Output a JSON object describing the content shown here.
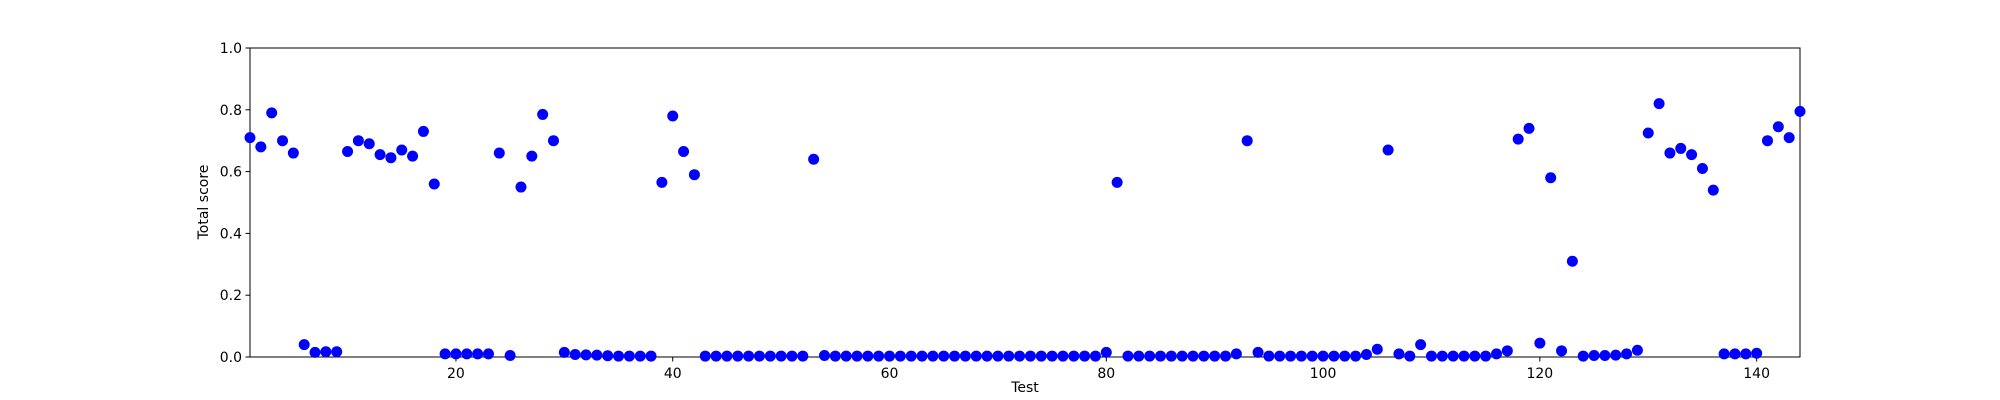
{
  "chart_data": {
    "type": "scatter",
    "xlabel": "Test",
    "ylabel": "Total score",
    "x": [
      1,
      2,
      3,
      4,
      5,
      6,
      7,
      8,
      9,
      10,
      11,
      12,
      13,
      14,
      15,
      16,
      17,
      18,
      19,
      20,
      21,
      22,
      23,
      24,
      25,
      26,
      27,
      28,
      29,
      30,
      31,
      32,
      33,
      34,
      35,
      36,
      37,
      38,
      39,
      40,
      41,
      42,
      43,
      44,
      45,
      46,
      47,
      48,
      49,
      50,
      51,
      52,
      53,
      54,
      55,
      56,
      57,
      58,
      59,
      60,
      61,
      62,
      63,
      64,
      65,
      66,
      67,
      68,
      69,
      70,
      71,
      72,
      73,
      74,
      75,
      76,
      77,
      78,
      79,
      80,
      81,
      82,
      83,
      84,
      85,
      86,
      87,
      88,
      89,
      90,
      91,
      92,
      93,
      94,
      95,
      96,
      97,
      98,
      99,
      100,
      101,
      102,
      103,
      104,
      105,
      106,
      107,
      108,
      109,
      110,
      111,
      112,
      113,
      114,
      115,
      116,
      117,
      118,
      119,
      120,
      121,
      122,
      123,
      124,
      125,
      126,
      127,
      128,
      129,
      130,
      131,
      132,
      133,
      134,
      135,
      136,
      137,
      138,
      139,
      140,
      141,
      142,
      143,
      144
    ],
    "values": [
      0.71,
      0.68,
      0.79,
      0.7,
      0.66,
      0.04,
      0.015,
      0.017,
      0.017,
      0.665,
      0.7,
      0.69,
      0.655,
      0.645,
      0.67,
      0.65,
      0.73,
      0.56,
      0.01,
      0.01,
      0.01,
      0.01,
      0.01,
      0.66,
      0.005,
      0.55,
      0.65,
      0.785,
      0.7,
      0.015,
      0.008,
      0.007,
      0.006,
      0.004,
      0.003,
      0.003,
      0.003,
      0.003,
      0.565,
      0.78,
      0.665,
      0.59,
      0.003,
      0.003,
      0.003,
      0.003,
      0.003,
      0.003,
      0.003,
      0.003,
      0.003,
      0.003,
      0.64,
      0.005,
      0.003,
      0.003,
      0.003,
      0.003,
      0.003,
      0.003,
      0.003,
      0.003,
      0.003,
      0.003,
      0.003,
      0.003,
      0.003,
      0.003,
      0.003,
      0.003,
      0.003,
      0.003,
      0.003,
      0.003,
      0.003,
      0.003,
      0.003,
      0.003,
      0.003,
      0.015,
      0.565,
      0.003,
      0.003,
      0.003,
      0.003,
      0.003,
      0.003,
      0.003,
      0.003,
      0.003,
      0.003,
      0.01,
      0.7,
      0.015,
      0.003,
      0.003,
      0.003,
      0.003,
      0.003,
      0.003,
      0.003,
      0.003,
      0.003,
      0.008,
      0.025,
      0.67,
      0.01,
      0.003,
      0.04,
      0.003,
      0.003,
      0.003,
      0.003,
      0.003,
      0.003,
      0.01,
      0.02,
      0.705,
      0.74,
      0.045,
      0.58,
      0.02,
      0.31,
      0.003,
      0.005,
      0.005,
      0.006,
      0.01,
      0.022,
      0.725,
      0.82,
      0.66,
      0.675,
      0.655,
      0.61,
      0.54,
      0.01,
      0.01,
      0.01,
      0.012,
      0.7,
      0.745,
      0.71,
      0.795
    ],
    "color": "#0000ff",
    "xlim": [
      1,
      144
    ],
    "xticks": [
      20,
      40,
      60,
      80,
      100,
      120,
      140
    ],
    "ylim": [
      0,
      1
    ],
    "yticks": [
      {
        "value": 0,
        "label": "0.0"
      },
      {
        "value": 0.2,
        "label": "0.2"
      },
      {
        "value": 0.4,
        "label": "0.4"
      },
      {
        "value": 0.6,
        "label": "0.6"
      },
      {
        "value": 0.8,
        "label": "0.8"
      },
      {
        "value": 1,
        "label": "1.0"
      }
    ],
    "grid": false
  }
}
